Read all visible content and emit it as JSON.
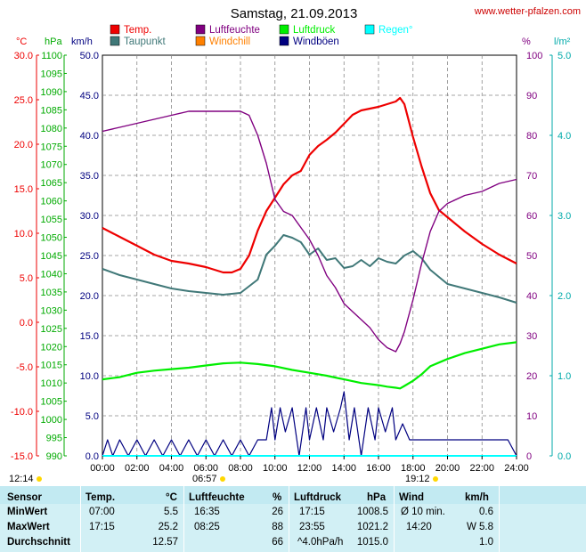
{
  "title": "Samstag, 21.09.2013",
  "source": "www.wetter-pfalzen.com",
  "axis_units": {
    "temp": "°C",
    "pressure": "hPa",
    "wind": "km/h",
    "humidity": "%",
    "rain": "l/m²"
  },
  "legend": [
    {
      "label": "Temp.",
      "color": "#ee0000"
    },
    {
      "label": "Luftfeuchte",
      "color": "#800080"
    },
    {
      "label": "Luftdruck",
      "color": "#00ee00"
    },
    {
      "label": "Regen°",
      "color": "#00ffff"
    },
    {
      "label": "Taupunkt",
      "color": "#407878"
    },
    {
      "label": "Windchill",
      "color": "#ff8000"
    },
    {
      "label": "Windböen",
      "color": "#000080"
    }
  ],
  "sunrise": "06:57",
  "sunset": "19:12",
  "sun_hours": "12:14",
  "colors": {
    "temp": "#ee0000",
    "humidity": "#800080",
    "pressure": "#00ee00",
    "dew": "#407878",
    "wind": "#000080",
    "rain": "#00ffff",
    "sun": "#ffd700"
  },
  "chart_data": {
    "type": "line",
    "title": "Samstag, 21.09.2013",
    "x_ticks": [
      "00:00",
      "02:00",
      "04:00",
      "06:00",
      "08:00",
      "10:00",
      "12:00",
      "14:00",
      "16:00",
      "18:00",
      "20:00",
      "22:00",
      "24:00"
    ],
    "x_range_hours": [
      0,
      24
    ],
    "axes": {
      "temp": {
        "unit": "°C",
        "range": [
          -15,
          30
        ],
        "ticks": [
          "30.0",
          "25.0",
          "20.0",
          "15.0",
          "10.0",
          "5.0",
          "0.0",
          "-5.0",
          "-10.0",
          "-15.0"
        ]
      },
      "pressure": {
        "unit": "hPa",
        "range": [
          990,
          1100
        ],
        "ticks": [
          "1100",
          "1095",
          "1090",
          "1085",
          "1080",
          "1075",
          "1070",
          "1065",
          "1060",
          "1055",
          "1050",
          "1045",
          "1040",
          "1035",
          "1030",
          "1025",
          "1020",
          "1015",
          "1010",
          "1005",
          "1000",
          "995",
          "990"
        ]
      },
      "wind": {
        "unit": "km/h",
        "range": [
          0,
          50
        ],
        "ticks": [
          "50.0",
          "45.0",
          "40.0",
          "35.0",
          "30.0",
          "25.0",
          "20.0",
          "15.0",
          "10.0",
          "5.0",
          "0.0"
        ]
      },
      "humidity": {
        "unit": "%",
        "range": [
          0,
          100
        ],
        "ticks": [
          "100",
          "90",
          "80",
          "70",
          "60",
          "50",
          "40",
          "30",
          "20",
          "10",
          "0"
        ]
      },
      "rain": {
        "unit": "l/m²",
        "range": [
          0,
          5
        ],
        "ticks": [
          "5.0",
          "4.0",
          "3.0",
          "2.0",
          "1.0",
          "0.0"
        ]
      }
    },
    "series": [
      {
        "name": "Temp.",
        "axis": "temp",
        "x": [
          0,
          1,
          2,
          3,
          4,
          5,
          6,
          6.5,
          7,
          7.5,
          8,
          8.5,
          9,
          9.5,
          10,
          10.5,
          11,
          11.5,
          12,
          12.5,
          13,
          13.5,
          14,
          14.5,
          15,
          15.5,
          16,
          16.5,
          17,
          17.25,
          17.5,
          18,
          18.5,
          19,
          19.5,
          20,
          21,
          22,
          23,
          24
        ],
        "y": [
          10.6,
          9.6,
          8.6,
          7.6,
          6.9,
          6.6,
          6.2,
          5.9,
          5.6,
          5.6,
          6.0,
          7.5,
          10.3,
          12.5,
          14.0,
          15.5,
          16.5,
          17.0,
          18.8,
          19.8,
          20.5,
          21.3,
          22.3,
          23.3,
          23.8,
          24.0,
          24.2,
          24.5,
          24.8,
          25.2,
          24.5,
          20.8,
          17.5,
          14.5,
          12.6,
          11.8,
          10.2,
          8.8,
          7.6,
          6.6
        ]
      },
      {
        "name": "Taupunkt",
        "axis": "temp",
        "x": [
          0,
          1,
          2,
          3,
          4,
          5,
          6,
          7,
          8,
          9,
          9.5,
          10,
          10.5,
          11,
          11.5,
          12,
          12.5,
          13,
          13.5,
          14,
          14.5,
          15,
          15.5,
          16,
          16.5,
          17,
          17.5,
          18,
          18.5,
          19,
          20,
          21,
          22,
          23,
          24
        ],
        "y": [
          6.0,
          5.3,
          4.8,
          4.3,
          3.8,
          3.5,
          3.3,
          3.1,
          3.3,
          4.8,
          7.6,
          8.6,
          9.8,
          9.5,
          9.0,
          7.6,
          8.3,
          7.0,
          7.2,
          6.1,
          6.3,
          7.0,
          6.3,
          7.2,
          6.8,
          6.6,
          7.5,
          8.0,
          7.2,
          5.9,
          4.3,
          3.8,
          3.3,
          2.8,
          2.2
        ]
      },
      {
        "name": "Luftfeuchte",
        "axis": "humidity",
        "x": [
          0,
          1,
          2,
          3,
          4,
          5,
          6,
          7,
          8,
          8.5,
          9,
          9.5,
          10,
          10.5,
          11,
          11.5,
          12,
          12.5,
          13,
          13.5,
          14,
          14.5,
          15,
          15.5,
          16,
          16.5,
          17,
          17.25,
          17.5,
          18,
          18.5,
          19,
          19.5,
          20,
          21,
          22,
          23,
          24
        ],
        "y": [
          81,
          82,
          83,
          84,
          85,
          86,
          86,
          86,
          86,
          85,
          80,
          73,
          64,
          61,
          60,
          57,
          54,
          50,
          45,
          42,
          38,
          36,
          34,
          32,
          29,
          27,
          26,
          28,
          31,
          39,
          48,
          56,
          61,
          63,
          65,
          66,
          68,
          69
        ]
      },
      {
        "name": "Luftdruck",
        "axis": "pressure",
        "x": [
          0,
          1,
          2,
          3,
          4,
          5,
          6,
          7,
          8,
          9,
          10,
          11,
          12,
          13,
          14,
          15,
          16,
          16.5,
          17,
          17.25,
          17.5,
          18,
          18.5,
          19,
          20,
          21,
          22,
          23,
          24
        ],
        "y": [
          1011.0,
          1011.6,
          1012.8,
          1013.4,
          1013.8,
          1014.2,
          1014.8,
          1015.4,
          1015.6,
          1015.2,
          1014.6,
          1013.6,
          1012.8,
          1012.0,
          1011.0,
          1010.0,
          1009.4,
          1009.0,
          1008.7,
          1008.5,
          1009.2,
          1010.6,
          1012.4,
          1014.6,
          1016.6,
          1018.2,
          1019.4,
          1020.6,
          1021.2
        ]
      },
      {
        "name": "Windböen",
        "axis": "wind",
        "x": [
          0,
          0.3,
          0.6,
          1,
          1.5,
          2,
          2.5,
          3,
          3.5,
          4,
          4.5,
          5,
          5.5,
          6,
          6.5,
          7,
          7.5,
          8,
          8.5,
          9,
          9.5,
          9.8,
          10,
          10.3,
          10.6,
          11,
          11.4,
          11.8,
          12,
          12.4,
          12.8,
          13,
          13.4,
          13.8,
          14,
          14.3,
          14.6,
          15,
          15.4,
          15.8,
          16,
          16.4,
          16.8,
          17,
          17.4,
          17.8,
          18,
          18.5,
          19,
          20,
          21,
          22,
          23,
          23.5,
          24
        ],
        "y": [
          0,
          2,
          0,
          2,
          0,
          2,
          0,
          2,
          0,
          2,
          0,
          2,
          0,
          2,
          0,
          2,
          0,
          2,
          0,
          2,
          2,
          6,
          2,
          6,
          3,
          6,
          0,
          6,
          2,
          6,
          2,
          6,
          3,
          6,
          8,
          2,
          6,
          0,
          6,
          2,
          6,
          3,
          6,
          2,
          4,
          2,
          2,
          2,
          2,
          2,
          2,
          2,
          2,
          2,
          0
        ]
      }
    ]
  },
  "table": {
    "headers": {
      "sensor": "Sensor",
      "temp": "Temp.",
      "temp_unit": "°C",
      "humidity": "Luftfeuchte",
      "humidity_unit": "%",
      "pressure": "Luftdruck",
      "pressure_unit": "hPa",
      "wind": "Wind",
      "wind_unit": "km/h"
    },
    "rows": [
      {
        "label": "MinWert",
        "temp_time": "07:00",
        "temp_val": "5.5",
        "hum_time": "16:35",
        "hum_val": "26",
        "press_time": "17:15",
        "press_val": "1008.5",
        "wind_label": "Ø 10 min.",
        "wind_val": "0.6"
      },
      {
        "label": "MaxWert",
        "temp_time": "17:15",
        "temp_val": "25.2",
        "hum_time": "08:25",
        "hum_val": "88",
        "press_time": "23:55",
        "press_val": "1021.2",
        "wind_label": "14:20",
        "wind_val": "W 5.8"
      },
      {
        "label": "Durchschnitt",
        "temp_time": "",
        "temp_val": "12.57",
        "hum_time": "",
        "hum_val": "66",
        "press_time": "^4.0hPa/h",
        "press_val": "1015.0",
        "wind_label": "",
        "wind_val": "1.0"
      }
    ]
  }
}
